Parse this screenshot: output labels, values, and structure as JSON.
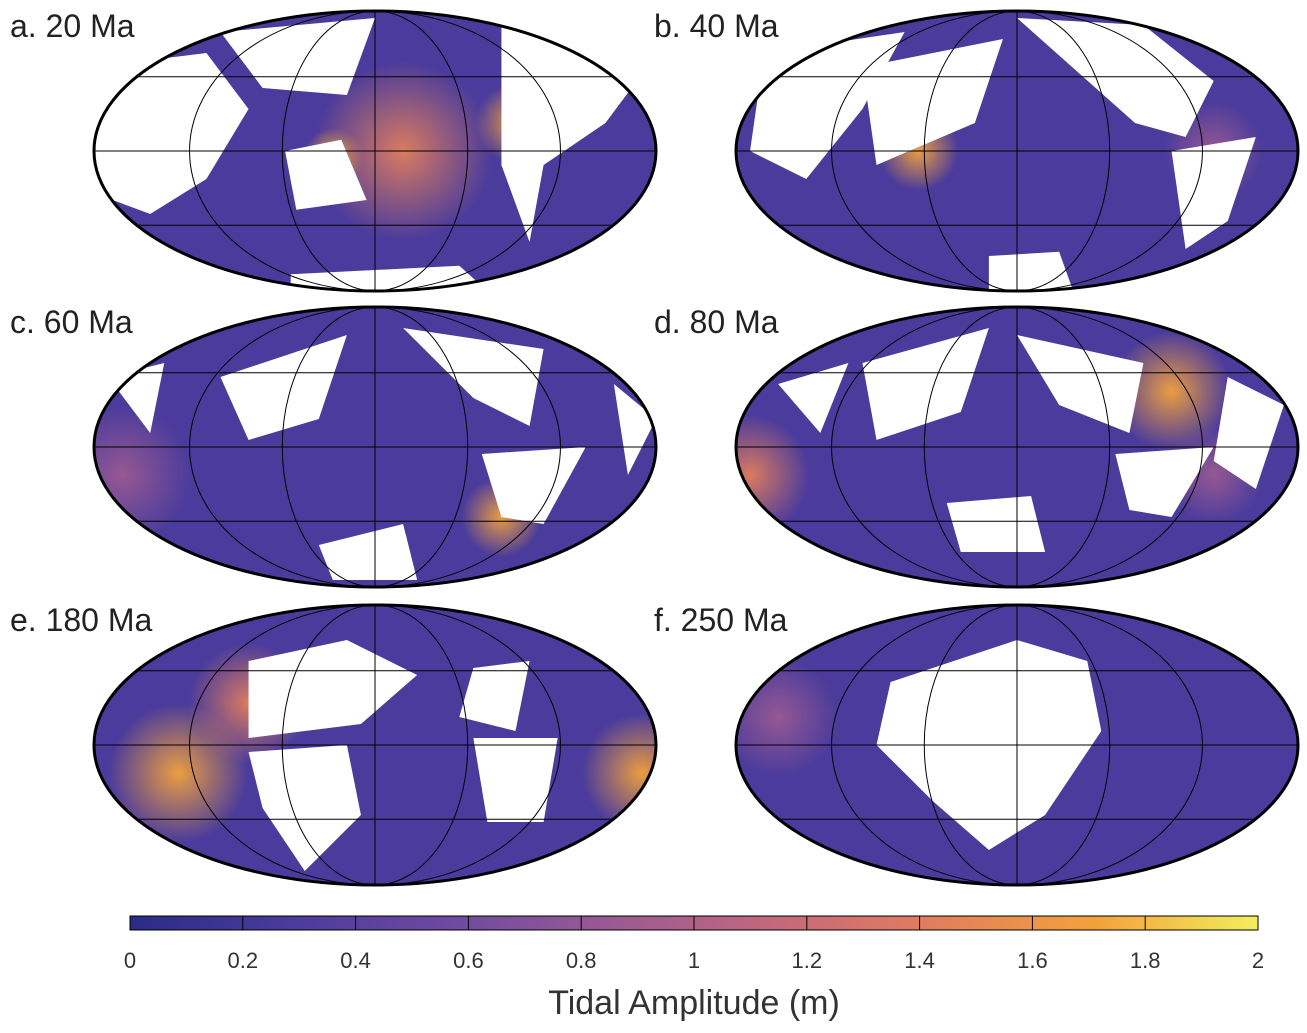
{
  "panels": [
    {
      "label": "a. 20 Ma"
    },
    {
      "label": "b. 40 Ma"
    },
    {
      "label": "c. 60 Ma"
    },
    {
      "label": "d. 80 Ma"
    },
    {
      "label": "e. 180 Ma"
    },
    {
      "label": "f. 250 Ma"
    }
  ],
  "colorbar": {
    "label": "Tidal Amplitude (m)",
    "lim": [
      0,
      2
    ],
    "ticks": [
      0,
      0.2,
      0.4,
      0.6,
      0.8,
      1,
      1.2,
      1.4,
      1.6,
      1.8,
      2
    ],
    "colors": [
      "#2a2c84",
      "#4a3b9c",
      "#6e4aa0",
      "#9a5a92",
      "#c4687c",
      "#e27e5c",
      "#f3a23c",
      "#f2ee5e"
    ]
  }
}
